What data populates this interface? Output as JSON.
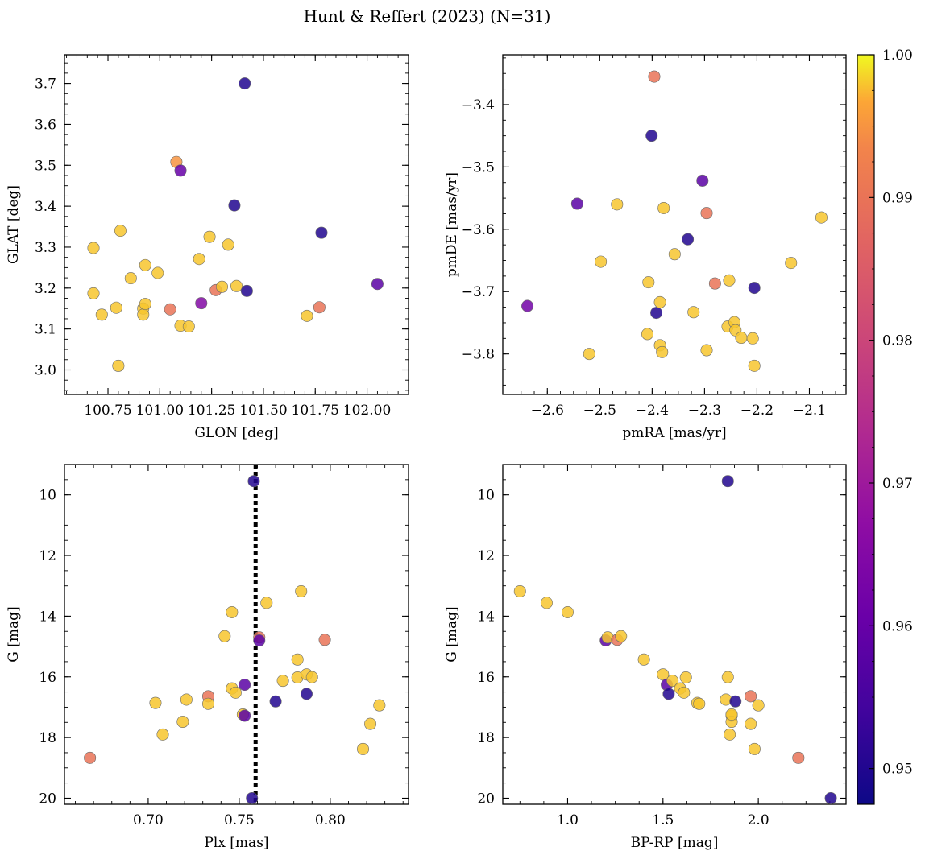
{
  "figure": {
    "title": "Hunt & Reffert (2023) (N=31)"
  },
  "colorbar": {
    "colormap": "plasma",
    "range": [
      0.9475,
      1.0
    ],
    "ticks": [
      "0.95",
      "0.96",
      "0.97",
      "0.98",
      "0.99",
      "1.00"
    ],
    "tick_values": [
      0.95,
      0.96,
      0.97,
      0.98,
      0.99,
      1.0
    ]
  },
  "chart_data": [
    {
      "type": "scatter",
      "id": "glon-glat",
      "xlabel": "GLON [deg]",
      "ylabel": "GLAT [deg]",
      "xlim": [
        100.54,
        102.2
      ],
      "ylim": [
        2.94,
        3.77
      ],
      "yinvert": false,
      "xticks": [
        100.75,
        101.0,
        101.25,
        101.5,
        101.75,
        102.0
      ],
      "xticklabels": [
        "100.75",
        "101.00",
        "101.25",
        "101.50",
        "101.75",
        "102.00"
      ],
      "yticks": [
        3.0,
        3.1,
        3.2,
        3.3,
        3.4,
        3.5,
        3.6,
        3.7
      ],
      "yticklabels": [
        "3.0",
        "3.1",
        "3.2",
        "3.3",
        "3.4",
        "3.5",
        "3.6",
        "3.7"
      ],
      "points": [
        [
          100.68,
          3.298,
          0.998
        ],
        [
          100.68,
          3.187,
          0.998
        ],
        [
          100.72,
          3.135,
          0.998
        ],
        [
          100.79,
          3.152,
          0.998
        ],
        [
          100.8,
          3.01,
          0.998
        ],
        [
          100.81,
          3.34,
          0.998
        ],
        [
          100.86,
          3.224,
          0.998
        ],
        [
          100.92,
          3.15,
          0.998
        ],
        [
          100.92,
          3.135,
          0.998
        ],
        [
          100.93,
          3.161,
          0.998
        ],
        [
          100.93,
          3.256,
          0.998
        ],
        [
          100.99,
          3.237,
          0.998
        ],
        [
          101.05,
          3.148,
          0.99
        ],
        [
          101.08,
          3.508,
          0.995
        ],
        [
          101.1,
          3.487,
          0.96
        ],
        [
          101.1,
          3.108,
          0.998
        ],
        [
          101.14,
          3.106,
          0.998
        ],
        [
          101.19,
          3.271,
          0.998
        ],
        [
          101.2,
          3.163,
          0.965
        ],
        [
          101.24,
          3.325,
          0.998
        ],
        [
          101.27,
          3.195,
          0.99
        ],
        [
          101.3,
          3.203,
          0.998
        ],
        [
          101.33,
          3.306,
          0.998
        ],
        [
          101.36,
          3.402,
          0.95
        ],
        [
          101.37,
          3.205,
          0.998
        ],
        [
          101.41,
          3.7,
          0.95
        ],
        [
          101.42,
          3.193,
          0.95
        ],
        [
          101.71,
          3.132,
          0.998
        ],
        [
          101.77,
          3.153,
          0.99
        ],
        [
          101.78,
          3.335,
          0.95
        ],
        [
          102.05,
          3.21,
          0.958
        ]
      ]
    },
    {
      "type": "scatter",
      "id": "pm",
      "xlabel": "pmRA [mas/yr]",
      "ylabel": "pmDE [mas/yr]",
      "xlim": [
        -2.685,
        -2.03
      ],
      "ylim": [
        -3.865,
        -3.32
      ],
      "yinvert": false,
      "xticks": [
        -2.6,
        -2.5,
        -2.4,
        -2.3,
        -2.2,
        -2.1
      ],
      "xticklabels": [
        "−2.6",
        "−2.5",
        "−2.4",
        "−2.3",
        "−2.2",
        "−2.1"
      ],
      "yticks": [
        -3.8,
        -3.7,
        -3.6,
        -3.5,
        -3.4
      ],
      "yticklabels": [
        "−3.8",
        "−3.7",
        "−3.6",
        "−3.5",
        "−3.4"
      ],
      "points": [
        [
          -2.638,
          -3.723,
          0.962
        ],
        [
          -2.543,
          -3.559,
          0.958
        ],
        [
          -2.52,
          -3.8,
          0.998
        ],
        [
          -2.498,
          -3.652,
          0.998
        ],
        [
          -2.467,
          -3.56,
          0.998
        ],
        [
          -2.407,
          -3.685,
          0.998
        ],
        [
          -2.409,
          -3.768,
          0.998
        ],
        [
          -2.401,
          -3.45,
          0.95
        ],
        [
          -2.396,
          -3.355,
          0.99
        ],
        [
          -2.392,
          -3.734,
          0.95
        ],
        [
          -2.385,
          -3.717,
          0.998
        ],
        [
          -2.385,
          -3.786,
          0.998
        ],
        [
          -2.381,
          -3.797,
          0.998
        ],
        [
          -2.378,
          -3.566,
          0.998
        ],
        [
          -2.357,
          -3.64,
          0.998
        ],
        [
          -2.332,
          -3.616,
          0.95
        ],
        [
          -2.321,
          -3.733,
          0.998
        ],
        [
          -2.304,
          -3.522,
          0.958
        ],
        [
          -2.296,
          -3.574,
          0.99
        ],
        [
          -2.296,
          -3.794,
          0.998
        ],
        [
          -2.28,
          -3.687,
          0.99
        ],
        [
          -2.256,
          -3.756,
          0.998
        ],
        [
          -2.253,
          -3.682,
          0.998
        ],
        [
          -2.243,
          -3.749,
          0.998
        ],
        [
          -2.241,
          -3.762,
          0.998
        ],
        [
          -2.23,
          -3.774,
          0.998
        ],
        [
          -2.208,
          -3.775,
          0.998
        ],
        [
          -2.205,
          -3.694,
          0.95
        ],
        [
          -2.205,
          -3.819,
          0.998
        ],
        [
          -2.135,
          -3.654,
          0.998
        ],
        [
          -2.077,
          -3.581,
          0.998
        ]
      ]
    },
    {
      "type": "scatter",
      "id": "plx-g",
      "xlabel": "Plx [mas]",
      "ylabel": "G [mag]",
      "xlim": [
        0.654,
        0.843
      ],
      "ylim": [
        9.0,
        20.2
      ],
      "yinvert": true,
      "vline": 0.759,
      "xticks": [
        0.7,
        0.75,
        0.8
      ],
      "xticklabels": [
        "0.70",
        "0.75",
        "0.80"
      ],
      "yticks": [
        10,
        12,
        14,
        16,
        18,
        20
      ],
      "yticklabels": [
        "10",
        "12",
        "14",
        "16",
        "18",
        "20"
      ],
      "points": [
        [
          0.668,
          18.67,
          0.99
        ],
        [
          0.704,
          16.86,
          0.998
        ],
        [
          0.708,
          17.9,
          0.998
        ],
        [
          0.719,
          17.48,
          0.998
        ],
        [
          0.721,
          16.75,
          0.998
        ],
        [
          0.733,
          16.64,
          0.99
        ],
        [
          0.733,
          16.89,
          0.998
        ],
        [
          0.742,
          14.66,
          0.998
        ],
        [
          0.746,
          13.87,
          0.998
        ],
        [
          0.746,
          16.38,
          0.998
        ],
        [
          0.748,
          16.52,
          0.998
        ],
        [
          0.752,
          17.24,
          0.998
        ],
        [
          0.753,
          17.28,
          0.958
        ],
        [
          0.753,
          16.26,
          0.958
        ],
        [
          0.757,
          20.0,
          0.95
        ],
        [
          0.758,
          9.55,
          0.95
        ],
        [
          0.761,
          14.7,
          0.99
        ],
        [
          0.761,
          14.8,
          0.958
        ],
        [
          0.765,
          13.56,
          0.998
        ],
        [
          0.77,
          16.81,
          0.95
        ],
        [
          0.774,
          16.13,
          0.998
        ],
        [
          0.782,
          15.43,
          0.998
        ],
        [
          0.782,
          16.02,
          0.998
        ],
        [
          0.784,
          13.18,
          0.998
        ],
        [
          0.787,
          15.92,
          0.998
        ],
        [
          0.787,
          16.56,
          0.95
        ],
        [
          0.79,
          16.01,
          0.998
        ],
        [
          0.797,
          14.78,
          0.99
        ],
        [
          0.818,
          18.38,
          0.998
        ],
        [
          0.822,
          17.55,
          0.998
        ],
        [
          0.827,
          16.94,
          0.998
        ]
      ]
    },
    {
      "type": "scatter",
      "id": "bprp-g",
      "xlabel": "BP-RP [mag]",
      "ylabel": "G [mag]",
      "xlim": [
        0.66,
        2.46
      ],
      "ylim": [
        9.0,
        20.2
      ],
      "yinvert": true,
      "xticks": [
        1.0,
        1.5,
        2.0
      ],
      "xticklabels": [
        "1.0",
        "1.5",
        "2.0"
      ],
      "yticks": [
        10,
        12,
        14,
        16,
        18,
        20
      ],
      "yticklabels": [
        "10",
        "12",
        "14",
        "16",
        "18",
        "20"
      ],
      "points": [
        [
          0.75,
          13.18,
          0.998
        ],
        [
          0.89,
          13.56,
          0.998
        ],
        [
          1.0,
          13.87,
          0.998
        ],
        [
          1.2,
          14.8,
          0.958
        ],
        [
          1.21,
          14.7,
          0.998
        ],
        [
          1.26,
          14.78,
          0.99
        ],
        [
          1.28,
          14.66,
          0.998
        ],
        [
          1.4,
          15.43,
          0.998
        ],
        [
          1.5,
          15.92,
          0.998
        ],
        [
          1.52,
          16.26,
          0.958
        ],
        [
          1.53,
          16.56,
          0.95
        ],
        [
          1.55,
          16.13,
          0.998
        ],
        [
          1.59,
          16.38,
          0.998
        ],
        [
          1.61,
          16.52,
          0.998
        ],
        [
          1.62,
          16.02,
          0.998
        ],
        [
          1.68,
          16.86,
          0.998
        ],
        [
          1.69,
          16.89,
          0.998
        ],
        [
          1.83,
          16.75,
          0.998
        ],
        [
          1.84,
          9.55,
          0.95
        ],
        [
          1.84,
          16.01,
          0.998
        ],
        [
          1.85,
          17.9,
          0.998
        ],
        [
          1.86,
          17.28,
          0.998
        ],
        [
          1.86,
          17.48,
          0.998
        ],
        [
          1.86,
          17.24,
          0.998
        ],
        [
          1.88,
          16.81,
          0.95
        ],
        [
          1.96,
          16.64,
          0.99
        ],
        [
          1.96,
          17.55,
          0.998
        ],
        [
          1.98,
          18.38,
          0.998
        ],
        [
          2.0,
          16.94,
          0.998
        ],
        [
          2.21,
          18.67,
          0.99
        ],
        [
          2.38,
          20.0,
          0.95
        ]
      ]
    }
  ]
}
